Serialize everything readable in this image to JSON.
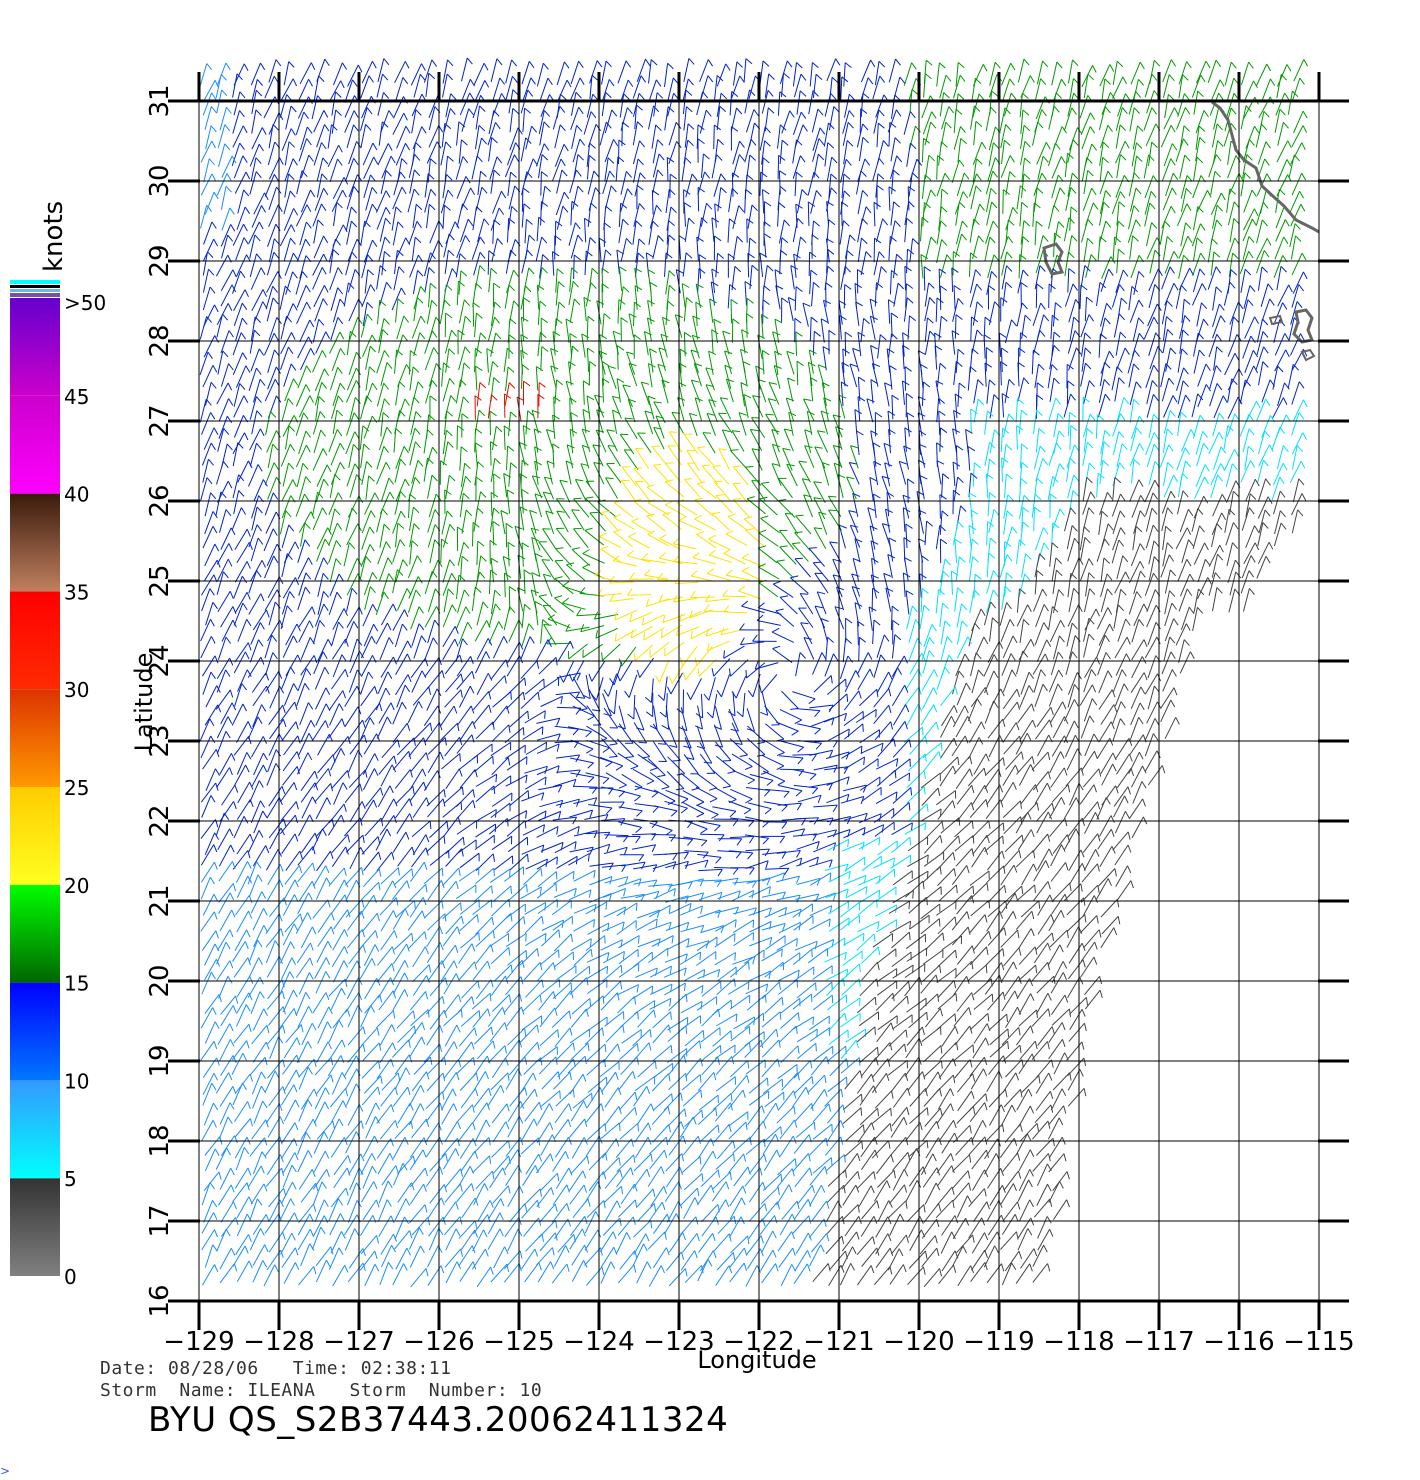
{
  "map": {
    "axis_x_label": "Longitude",
    "axis_y_label": "Latitude",
    "lon_ticks": [
      "−129",
      "−128",
      "−127",
      "−126",
      "−125",
      "−124",
      "−123",
      "−122",
      "−121",
      "−120",
      "−119",
      "−118",
      "−117",
      "−116",
      "−115"
    ],
    "lat_ticks": [
      "16",
      "17",
      "18",
      "19",
      "20",
      "21",
      "22",
      "23",
      "24",
      "25",
      "26",
      "27",
      "28",
      "29",
      "30",
      "31"
    ],
    "lon_range": [
      -129,
      -115
    ],
    "lat_range": [
      16,
      31
    ],
    "grid": true,
    "storm_center": {
      "lon": -121.6,
      "lat": 23.8
    },
    "storm_name": "ILEANA",
    "land_color": "#666666",
    "grid_color": "#000000"
  },
  "legend": {
    "unit": "knots",
    "labels": [
      ">50",
      "45",
      "40",
      "35",
      "30",
      "25",
      "20",
      "15",
      "10",
      "5",
      "0"
    ],
    "bands": [
      {
        "from": 0,
        "to": 5,
        "top": "#333333",
        "bottom": "#808080"
      },
      {
        "from": 5,
        "to": 10,
        "top": "#3399ff",
        "bottom": "#00ffff"
      },
      {
        "from": 10,
        "to": 15,
        "top": "#0000ff",
        "bottom": "#0077ff"
      },
      {
        "from": 15,
        "to": 20,
        "top": "#00ff00",
        "bottom": "#006600"
      },
      {
        "from": 20,
        "to": 25,
        "top": "#ffcc00",
        "bottom": "#ffff22"
      },
      {
        "from": 25,
        "to": 30,
        "top": "#dd3300",
        "bottom": "#ff9900"
      },
      {
        "from": 30,
        "to": 35,
        "top": "#ff0000",
        "bottom": "#ff2a00"
      },
      {
        "from": 35,
        "to": 40,
        "top": "#3a1a0a",
        "bottom": "#c08060"
      },
      {
        "from": 40,
        "to": 45,
        "top": "#cc00cc",
        "bottom": "#ff00ff"
      },
      {
        "from": 45,
        "to": 50,
        "top": "#6600cc",
        "bottom": "#cc00cc"
      }
    ]
  },
  "wind_colors": {
    "calm": "#444444",
    "cyan": "#00e0ff",
    "lightblue": "#1a8cff",
    "blue": "#0022cc",
    "green": "#009900",
    "yellow": "#ffe000",
    "red": "#dd1100"
  },
  "meta": {
    "date_label": "Date:",
    "date_value": "08/28/06",
    "time_label": "Time:",
    "time_value": "02:38:11",
    "storm_name_label": "Storm  Name:",
    "storm_name_value": "ILEANA",
    "storm_number_label": "Storm  Number:",
    "storm_number_value": "10"
  },
  "title": "BYU  QS_S2B37443.20062411324",
  "corner_mark": ">"
}
